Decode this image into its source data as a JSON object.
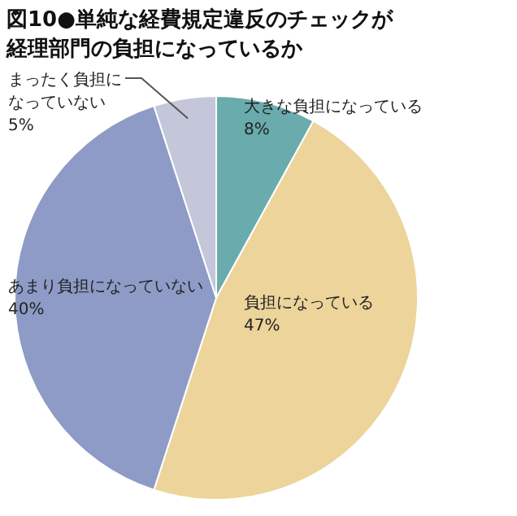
{
  "chart_data": {
    "type": "pie",
    "title": "図10●単純な経費規定違反のチェックが経理部門の負担になっているか",
    "categories": [
      "大きな負担になっている",
      "負担になっている",
      "あまり負担になっていない",
      "まったく負担になっていない"
    ],
    "values": [
      8,
      47,
      40,
      5
    ],
    "colors": [
      "#6aabad",
      "#ecd49b",
      "#8e9bc6",
      "#c4c7da"
    ],
    "value_labels": [
      "8%",
      "47%",
      "40%",
      "5%"
    ],
    "legend": false
  }
}
